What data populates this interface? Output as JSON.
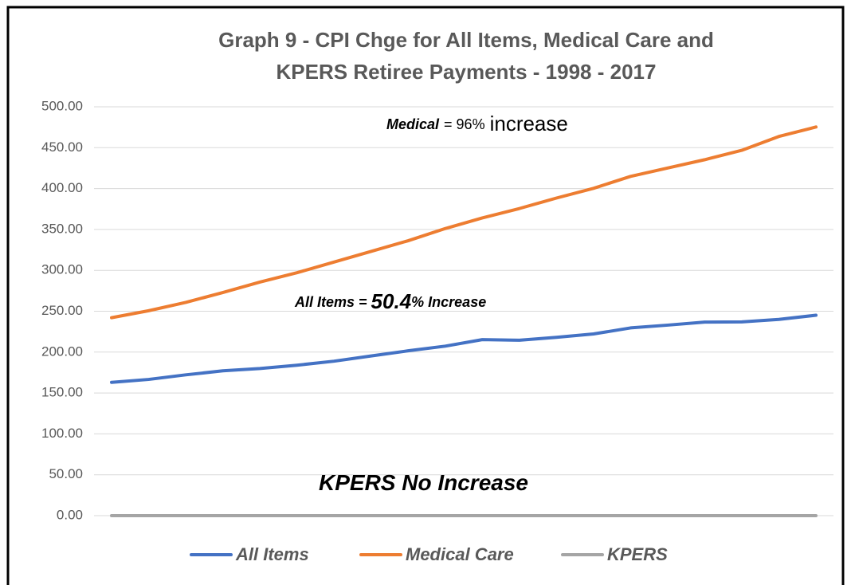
{
  "chart_data": {
    "type": "line",
    "title": [
      "Graph 9 - CPI Chge for All Items, Medical Care and",
      "KPERS Retiree Payments - 1998 - 2017"
    ],
    "categories": [
      null,
      null,
      null,
      null,
      null,
      null,
      null,
      null,
      null,
      null,
      null,
      null,
      null,
      null,
      null,
      null,
      null,
      null,
      null,
      null
    ],
    "series": [
      {
        "name": "All Items",
        "color": "#4472c4",
        "values": [
          163.0,
          166.6,
          172.2,
          177.1,
          179.9,
          184.0,
          188.9,
          195.3,
          201.6,
          207.3,
          215.3,
          214.5,
          218.1,
          222.2,
          229.6,
          233.0,
          236.7,
          237.0,
          240.0,
          245.1
        ]
      },
      {
        "name": "Medical Care",
        "color": "#ed7d31",
        "values": [
          242.1,
          250.6,
          260.8,
          272.8,
          285.6,
          297.1,
          310.1,
          323.2,
          336.2,
          351.1,
          364.1,
          375.6,
          388.4,
          400.3,
          414.9,
          425.1,
          435.3,
          446.8,
          463.7,
          475.3
        ]
      },
      {
        "name": "KPERS",
        "color": "#a5a5a5",
        "values": [
          0,
          0,
          0,
          0,
          0,
          0,
          0,
          0,
          0,
          0,
          0,
          0,
          0,
          0,
          0,
          0,
          0,
          0,
          0,
          0
        ]
      }
    ],
    "ylim": [
      0,
      500
    ],
    "yticks": [
      {
        "value": 0,
        "label": "0.00"
      },
      {
        "value": 50,
        "label": "50.00"
      },
      {
        "value": 100,
        "label": "100.00"
      },
      {
        "value": 150,
        "label": "150.00"
      },
      {
        "value": 200,
        "label": "200.00"
      },
      {
        "value": 250,
        "label": "250.00"
      },
      {
        "value": 300,
        "label": "300.00"
      },
      {
        "value": 350,
        "label": "350.00"
      },
      {
        "value": 400,
        "label": "400.00"
      },
      {
        "value": 450,
        "label": "450.00"
      },
      {
        "value": {
          "value": 500,
          "label": "500.00"
        }
      }
    ],
    "grid": true,
    "legend": "bottom",
    "annotations": [
      {
        "parts": [
          "Medical",
          "= 96%",
          "increase"
        ]
      },
      {
        "parts": [
          "All Items =",
          "50.4",
          "% Increase"
        ]
      },
      {
        "parts": [
          "KPERS No Increase"
        ]
      }
    ]
  }
}
